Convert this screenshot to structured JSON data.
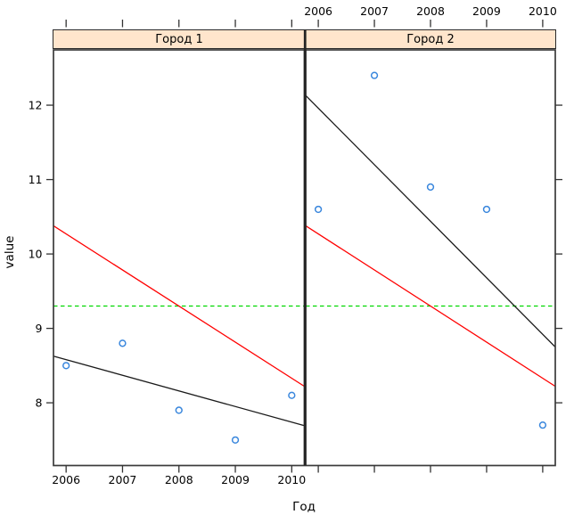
{
  "figure": {
    "strip_labels": [
      "Город 1",
      "Город 2"
    ],
    "xlabel": "Год",
    "ylabel": "value"
  },
  "chart_data": {
    "type": "scatter",
    "title": "",
    "xlabel": "Год",
    "ylabel": "value",
    "panels": [
      {
        "name": "Город 1",
        "years": [
          2006,
          2007,
          2008,
          2009,
          2010
        ],
        "values": [
          8.5,
          8.8,
          7.9,
          7.5,
          8.1
        ],
        "regression": {
          "slope_per_year": -0.21,
          "mean_value": 8.16,
          "center_year": 2008
        }
      },
      {
        "name": "Город 2",
        "years": [
          2006,
          2007,
          2008,
          2009,
          2010
        ],
        "values": [
          10.6,
          12.4,
          10.9,
          10.6,
          7.7
        ],
        "regression": {
          "slope_per_year": -0.76,
          "mean_value": 10.44,
          "center_year": 2008
        }
      }
    ],
    "global_regression": {
      "slope_per_year": -0.485,
      "mean_value": 9.3,
      "center_year": 2008
    },
    "mean_line_value": 9.3,
    "x_ticks": [
      2006,
      2007,
      2008,
      2009,
      2010
    ],
    "y_ticks": [
      8,
      9,
      10,
      11,
      12
    ],
    "xlim": [
      2005.776,
      2010.224
    ],
    "ylim": [
      7.157,
      12.743
    ],
    "axis_label_positions": {
      "bottom_labels_panel": "Город 1",
      "top_labels_panel": "Город 2"
    },
    "colors": {
      "point": "#3a87dd",
      "panel_regression": "#1a1a1a",
      "global_regression": "#ff0000",
      "mean_line": "#00d800",
      "strip_fill": "#ffe5cc",
      "border": "#3b3b3b"
    },
    "grid": false,
    "legend": null
  }
}
